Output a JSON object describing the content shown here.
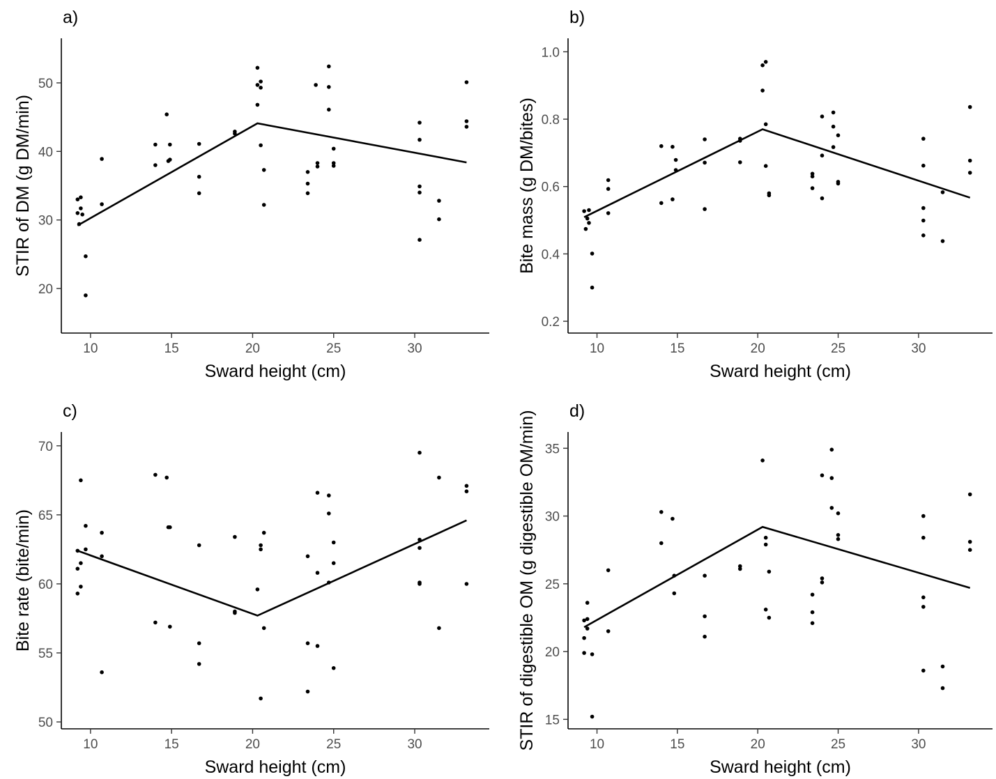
{
  "chart_data": [
    {
      "type": "scatter",
      "panel_label": "a)",
      "xlabel": "Sward height (cm)",
      "ylabel": "STIR of DM (g DM/min)",
      "xlim": [
        8.2,
        34.6
      ],
      "ylim": [
        13.5,
        56.5
      ],
      "xticks": [
        10,
        15,
        20,
        25,
        30
      ],
      "yticks": [
        20,
        30,
        40,
        50
      ],
      "grid": false,
      "points": [
        [
          9.2,
          33.0
        ],
        [
          9.2,
          31.0
        ],
        [
          9.3,
          29.4
        ],
        [
          9.4,
          33.3
        ],
        [
          9.4,
          31.7
        ],
        [
          9.5,
          30.8
        ],
        [
          9.7,
          24.7
        ],
        [
          9.7,
          19.0
        ],
        [
          10.7,
          32.3
        ],
        [
          10.7,
          38.9
        ],
        [
          14.0,
          41.0
        ],
        [
          14.0,
          38.0
        ],
        [
          14.7,
          45.4
        ],
        [
          14.8,
          38.6
        ],
        [
          14.9,
          41.0
        ],
        [
          14.9,
          38.8
        ],
        [
          16.7,
          41.1
        ],
        [
          16.7,
          36.3
        ],
        [
          16.7,
          33.9
        ],
        [
          18.9,
          42.9
        ],
        [
          18.9,
          42.6
        ],
        [
          20.3,
          52.2
        ],
        [
          20.3,
          49.7
        ],
        [
          20.3,
          46.8
        ],
        [
          20.5,
          50.2
        ],
        [
          20.5,
          49.3
        ],
        [
          20.5,
          40.9
        ],
        [
          20.7,
          37.3
        ],
        [
          20.7,
          32.2
        ],
        [
          23.4,
          37.0
        ],
        [
          23.4,
          35.3
        ],
        [
          23.4,
          33.9
        ],
        [
          23.9,
          49.7
        ],
        [
          24.0,
          38.3
        ],
        [
          24.0,
          37.8
        ],
        [
          24.7,
          52.4
        ],
        [
          24.7,
          49.4
        ],
        [
          24.7,
          46.1
        ],
        [
          25.0,
          40.4
        ],
        [
          25.0,
          38.3
        ],
        [
          25.0,
          37.9
        ],
        [
          30.3,
          44.2
        ],
        [
          30.3,
          41.7
        ],
        [
          30.3,
          34.9
        ],
        [
          30.3,
          34.0
        ],
        [
          30.3,
          27.1
        ],
        [
          31.5,
          32.8
        ],
        [
          31.5,
          30.1
        ],
        [
          33.2,
          50.1
        ],
        [
          33.2,
          44.4
        ],
        [
          33.2,
          43.6
        ]
      ],
      "fit_line": [
        [
          9.2,
          29.2
        ],
        [
          20.3,
          44.1
        ],
        [
          33.2,
          38.4
        ]
      ]
    },
    {
      "type": "scatter",
      "panel_label": "b)",
      "xlabel": "Sward height (cm)",
      "ylabel": "Bite mass (g DM/bites)",
      "xlim": [
        8.2,
        34.6
      ],
      "ylim": [
        0.165,
        1.04
      ],
      "xticks": [
        10,
        15,
        20,
        25,
        30
      ],
      "yticks": [
        0.2,
        0.4,
        0.6,
        0.8,
        1.0
      ],
      "ytick_labels": [
        "0.2",
        "0.4",
        "0.6",
        "0.8",
        "1.0"
      ],
      "grid": false,
      "points": [
        [
          9.2,
          0.527
        ],
        [
          9.3,
          0.474
        ],
        [
          9.4,
          0.505
        ],
        [
          9.5,
          0.53
        ],
        [
          9.5,
          0.492
        ],
        [
          9.7,
          0.401
        ],
        [
          9.7,
          0.3
        ],
        [
          10.7,
          0.619
        ],
        [
          10.7,
          0.593
        ],
        [
          10.7,
          0.521
        ],
        [
          14.0,
          0.72
        ],
        [
          14.0,
          0.551
        ],
        [
          14.7,
          0.718
        ],
        [
          14.7,
          0.562
        ],
        [
          14.9,
          0.679
        ],
        [
          14.9,
          0.649
        ],
        [
          16.7,
          0.74
        ],
        [
          16.7,
          0.671
        ],
        [
          16.7,
          0.533
        ],
        [
          18.9,
          0.742
        ],
        [
          18.9,
          0.736
        ],
        [
          18.9,
          0.672
        ],
        [
          20.3,
          0.96
        ],
        [
          20.3,
          0.885
        ],
        [
          20.5,
          0.97
        ],
        [
          20.5,
          0.785
        ],
        [
          20.5,
          0.661
        ],
        [
          20.7,
          0.58
        ],
        [
          20.7,
          0.574
        ],
        [
          23.4,
          0.638
        ],
        [
          23.4,
          0.63
        ],
        [
          23.4,
          0.595
        ],
        [
          24.0,
          0.808
        ],
        [
          24.0,
          0.692
        ],
        [
          24.0,
          0.565
        ],
        [
          24.7,
          0.82
        ],
        [
          24.7,
          0.778
        ],
        [
          24.7,
          0.717
        ],
        [
          25.0,
          0.752
        ],
        [
          25.0,
          0.614
        ],
        [
          25.0,
          0.609
        ],
        [
          30.3,
          0.742
        ],
        [
          30.3,
          0.662
        ],
        [
          30.3,
          0.536
        ],
        [
          30.3,
          0.499
        ],
        [
          30.3,
          0.455
        ],
        [
          31.5,
          0.583
        ],
        [
          31.5,
          0.438
        ],
        [
          33.2,
          0.836
        ],
        [
          33.2,
          0.677
        ],
        [
          33.2,
          0.641
        ]
      ],
      "fit_line": [
        [
          9.2,
          0.509
        ],
        [
          20.3,
          0.77
        ],
        [
          33.2,
          0.567
        ]
      ]
    },
    {
      "type": "scatter",
      "panel_label": "c)",
      "xlabel": "Sward height (cm)",
      "ylabel": "Bite rate (bite/min)",
      "xlim": [
        8.2,
        34.6
      ],
      "ylim": [
        49.5,
        71.0
      ],
      "xticks": [
        10,
        15,
        20,
        25,
        30
      ],
      "yticks": [
        50,
        55,
        60,
        65,
        70
      ],
      "grid": false,
      "points": [
        [
          9.2,
          62.4
        ],
        [
          9.2,
          61.1
        ],
        [
          9.2,
          59.3
        ],
        [
          9.4,
          67.5
        ],
        [
          9.4,
          61.5
        ],
        [
          9.4,
          59.8
        ],
        [
          9.7,
          64.2
        ],
        [
          9.7,
          62.5
        ],
        [
          10.7,
          63.7
        ],
        [
          10.7,
          62.0
        ],
        [
          10.7,
          53.6
        ],
        [
          14.0,
          67.9
        ],
        [
          14.0,
          57.2
        ],
        [
          14.7,
          67.7
        ],
        [
          14.8,
          64.1
        ],
        [
          14.9,
          64.1
        ],
        [
          14.9,
          56.9
        ],
        [
          16.7,
          62.8
        ],
        [
          16.7,
          55.7
        ],
        [
          16.7,
          54.2
        ],
        [
          18.9,
          63.4
        ],
        [
          18.9,
          58.0
        ],
        [
          18.9,
          57.9
        ],
        [
          20.3,
          59.6
        ],
        [
          20.5,
          62.8
        ],
        [
          20.5,
          62.5
        ],
        [
          20.5,
          51.7
        ],
        [
          20.7,
          63.7
        ],
        [
          20.7,
          56.8
        ],
        [
          23.4,
          62.0
        ],
        [
          23.4,
          55.7
        ],
        [
          23.4,
          52.2
        ],
        [
          24.0,
          66.6
        ],
        [
          24.0,
          60.8
        ],
        [
          24.0,
          55.5
        ],
        [
          24.7,
          66.4
        ],
        [
          24.7,
          65.1
        ],
        [
          24.7,
          60.1
        ],
        [
          25.0,
          63.0
        ],
        [
          25.0,
          61.5
        ],
        [
          25.0,
          53.9
        ],
        [
          30.3,
          69.5
        ],
        [
          30.3,
          63.2
        ],
        [
          30.3,
          62.6
        ],
        [
          30.3,
          60.1
        ],
        [
          30.3,
          60.0
        ],
        [
          31.5,
          67.7
        ],
        [
          31.5,
          56.8
        ],
        [
          33.2,
          67.1
        ],
        [
          33.2,
          66.7
        ],
        [
          33.2,
          60.0
        ]
      ],
      "fit_line": [
        [
          9.2,
          62.4
        ],
        [
          20.3,
          57.7
        ],
        [
          33.2,
          64.6
        ]
      ]
    },
    {
      "type": "scatter",
      "panel_label": "d)",
      "xlabel": "Sward height (cm)",
      "ylabel": "STIR of digestible OM (g digestible OM/min)",
      "xlim": [
        8.2,
        34.6
      ],
      "ylim": [
        14.3,
        36.2
      ],
      "xticks": [
        10,
        15,
        20,
        25,
        30
      ],
      "yticks": [
        15,
        20,
        25,
        30,
        35
      ],
      "grid": false,
      "points": [
        [
          9.2,
          22.3
        ],
        [
          9.2,
          21.0
        ],
        [
          9.2,
          19.9
        ],
        [
          9.4,
          23.6
        ],
        [
          9.4,
          22.4
        ],
        [
          9.4,
          21.7
        ],
        [
          9.7,
          19.8
        ],
        [
          9.7,
          15.2
        ],
        [
          10.7,
          26.0
        ],
        [
          10.7,
          21.5
        ],
        [
          14.0,
          30.3
        ],
        [
          14.0,
          28.0
        ],
        [
          14.7,
          29.8
        ],
        [
          14.8,
          25.6
        ],
        [
          14.8,
          24.3
        ],
        [
          16.7,
          25.6
        ],
        [
          16.7,
          22.6
        ],
        [
          16.7,
          21.1
        ],
        [
          18.9,
          26.3
        ],
        [
          18.9,
          26.1
        ],
        [
          20.3,
          34.1
        ],
        [
          20.5,
          28.4
        ],
        [
          20.5,
          27.9
        ],
        [
          20.5,
          23.1
        ],
        [
          20.7,
          25.9
        ],
        [
          20.7,
          22.5
        ],
        [
          23.4,
          24.2
        ],
        [
          23.4,
          22.9
        ],
        [
          23.4,
          22.1
        ],
        [
          24.0,
          33.0
        ],
        [
          24.0,
          25.4
        ],
        [
          24.0,
          25.1
        ],
        [
          24.6,
          34.9
        ],
        [
          24.6,
          32.8
        ],
        [
          24.6,
          30.6
        ],
        [
          25.0,
          30.2
        ],
        [
          25.0,
          28.6
        ],
        [
          25.0,
          28.3
        ],
        [
          30.3,
          30.0
        ],
        [
          30.3,
          28.4
        ],
        [
          30.3,
          24.0
        ],
        [
          30.3,
          23.3
        ],
        [
          30.3,
          18.6
        ],
        [
          31.5,
          18.9
        ],
        [
          31.5,
          17.3
        ],
        [
          33.2,
          31.6
        ],
        [
          33.2,
          28.1
        ],
        [
          33.2,
          27.5
        ]
      ],
      "fit_line": [
        [
          9.2,
          21.8
        ],
        [
          20.3,
          29.2
        ],
        [
          33.2,
          24.7
        ]
      ]
    }
  ]
}
